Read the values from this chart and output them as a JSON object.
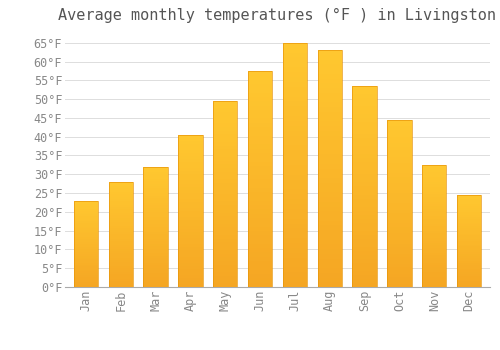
{
  "title": "Average monthly temperatures (°F ) in Livingston",
  "months": [
    "Jan",
    "Feb",
    "Mar",
    "Apr",
    "May",
    "Jun",
    "Jul",
    "Aug",
    "Sep",
    "Oct",
    "Nov",
    "Dec"
  ],
  "values": [
    23,
    28,
    32,
    40.5,
    49.5,
    57.5,
    65,
    63,
    53.5,
    44.5,
    32.5,
    24.5
  ],
  "bar_color_top": "#FFC020",
  "bar_color_bottom": "#F5A623",
  "bar_edge_color": "#E8960A",
  "background_color": "#FFFFFF",
  "grid_color": "#DDDDDD",
  "yticks": [
    0,
    5,
    10,
    15,
    20,
    25,
    30,
    35,
    40,
    45,
    50,
    55,
    60,
    65
  ],
  "ylim": [
    0,
    68
  ],
  "title_fontsize": 11,
  "tick_fontsize": 8.5,
  "title_color": "#555555",
  "tick_color": "#888888",
  "font_family": "monospace"
}
